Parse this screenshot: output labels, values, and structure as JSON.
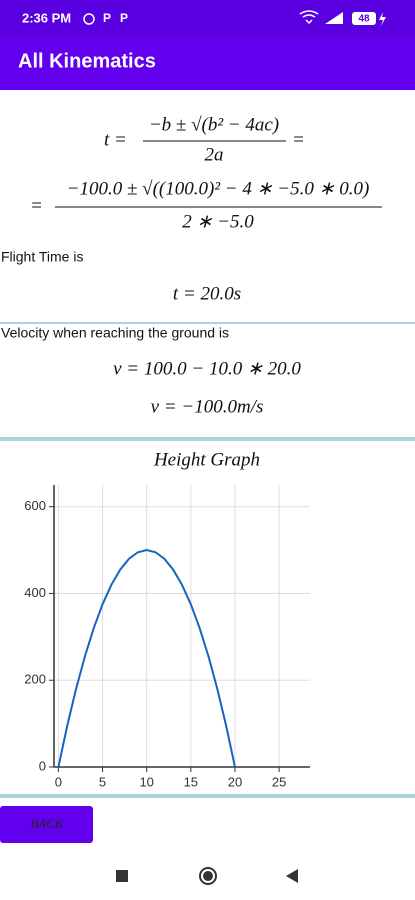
{
  "status_bar": {
    "time": "2:36 PM",
    "battery": "48"
  },
  "app_bar": {
    "title": "All Kinematics"
  },
  "formula_general": {
    "lhs": "t =",
    "numerator": "−b ± √(b² − 4ac)",
    "denominator": "2a",
    "rhs": "="
  },
  "formula_numeric": {
    "lhs": "=",
    "numerator": "−100.0 ± √((100.0)² − 4 ∗ −5.0 ∗ 0.0)",
    "denominator": "2 ∗ −5.0"
  },
  "flight_time": {
    "label": "Flight Time is",
    "result": "t = 20.0s"
  },
  "velocity": {
    "label": "Velocity when reaching the ground is",
    "equation": "v = 100.0 − 10.0 ∗ 20.0",
    "result": "v = −100.0m/s"
  },
  "chart_data": {
    "type": "line",
    "title": "Height Graph",
    "x": [
      0,
      1,
      2,
      3,
      4,
      5,
      6,
      7,
      8,
      9,
      10,
      11,
      12,
      13,
      14,
      15,
      16,
      17,
      18,
      19,
      20
    ],
    "values": [
      0,
      95,
      180,
      255,
      320,
      375,
      420,
      455,
      480,
      495,
      500,
      495,
      480,
      455,
      420,
      375,
      320,
      255,
      180,
      95,
      0
    ],
    "color": "#1565c0",
    "xlim": [
      -0.5,
      28.5
    ],
    "xticks": [
      0,
      5,
      10,
      15,
      20,
      25
    ],
    "ylim": [
      0,
      650
    ],
    "yticks": [
      0,
      200,
      400,
      600
    ],
    "grid": true
  },
  "back_button": {
    "label": "BACK"
  }
}
